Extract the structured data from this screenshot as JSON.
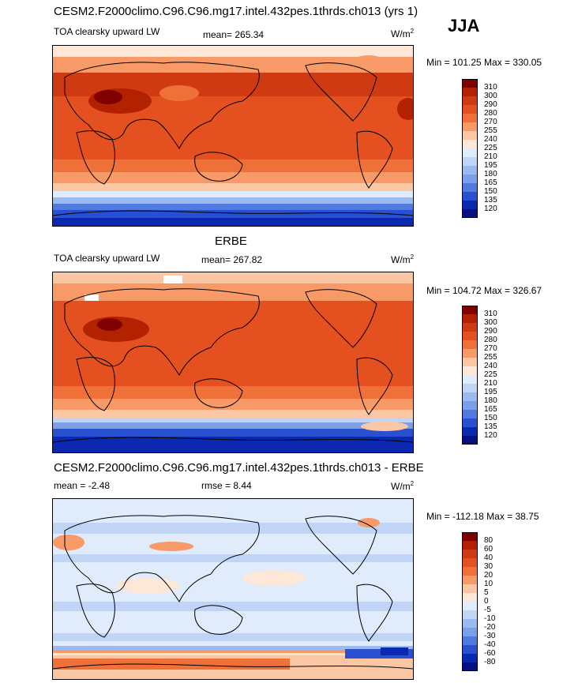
{
  "title": "CESM2.F2000climo.C96.C96.mg17.intel.432pes.1thrds.ch013 (yrs 1)",
  "season": "JJA",
  "panels": [
    {
      "id": "model",
      "heading": "",
      "variable": "TOA clearsky upward LW",
      "stat_text": "mean= 265.34",
      "rmse_text": "",
      "units": "W/m",
      "units_exp": "2",
      "minmax": "Min = 101.25 Max = 330.05",
      "levels": [
        "310",
        "300",
        "290",
        "280",
        "270",
        "255",
        "240",
        "225",
        "210",
        "195",
        "180",
        "165",
        "150",
        "135",
        "120"
      ],
      "colors": [
        "#800000",
        "#b22200",
        "#d03a12",
        "#e45020",
        "#f0703a",
        "#f79a68",
        "#fbc6a4",
        "#fde8d8",
        "#e0ecfb",
        "#c0d4f6",
        "#9cbaf0",
        "#7aa0ea",
        "#4f7be0",
        "#2850d0",
        "#0a28b0",
        "#061080"
      ]
    },
    {
      "id": "obs",
      "heading": "ERBE",
      "variable": "TOA clearsky upward LW",
      "stat_text": "mean= 267.82",
      "rmse_text": "",
      "units": "W/m",
      "units_exp": "2",
      "minmax": "Min = 104.72 Max = 326.67",
      "levels": [
        "310",
        "300",
        "290",
        "280",
        "270",
        "255",
        "240",
        "225",
        "210",
        "195",
        "180",
        "165",
        "150",
        "135",
        "120"
      ],
      "colors": [
        "#800000",
        "#b22200",
        "#d03a12",
        "#e45020",
        "#f0703a",
        "#f79a68",
        "#fbc6a4",
        "#fde8d8",
        "#e0ecfb",
        "#c0d4f6",
        "#9cbaf0",
        "#7aa0ea",
        "#4f7be0",
        "#2850d0",
        "#0a28b0",
        "#061080"
      ]
    },
    {
      "id": "diff",
      "heading": "CESM2.F2000climo.C96.C96.mg17.intel.432pes.1thrds.ch013 - ERBE",
      "variable": "",
      "stat_text": "mean =  -2.48",
      "rmse_text": "rmse =   8.44",
      "units": "W/m",
      "units_exp": "2",
      "minmax": "Min = -112.18 Max =  38.75",
      "levels": [
        "80",
        "60",
        "40",
        "30",
        "20",
        "10",
        "5",
        "0",
        "-5",
        "-10",
        "-20",
        "-30",
        "-40",
        "-60",
        "-80"
      ],
      "colors": [
        "#800000",
        "#b22200",
        "#d03a12",
        "#e45020",
        "#f0703a",
        "#f79a68",
        "#fbc6a4",
        "#fde8d8",
        "#e0ecfb",
        "#c0d4f6",
        "#9cbaf0",
        "#7aa0ea",
        "#4f7be0",
        "#2850d0",
        "#0a28b0",
        "#061080"
      ]
    }
  ]
}
